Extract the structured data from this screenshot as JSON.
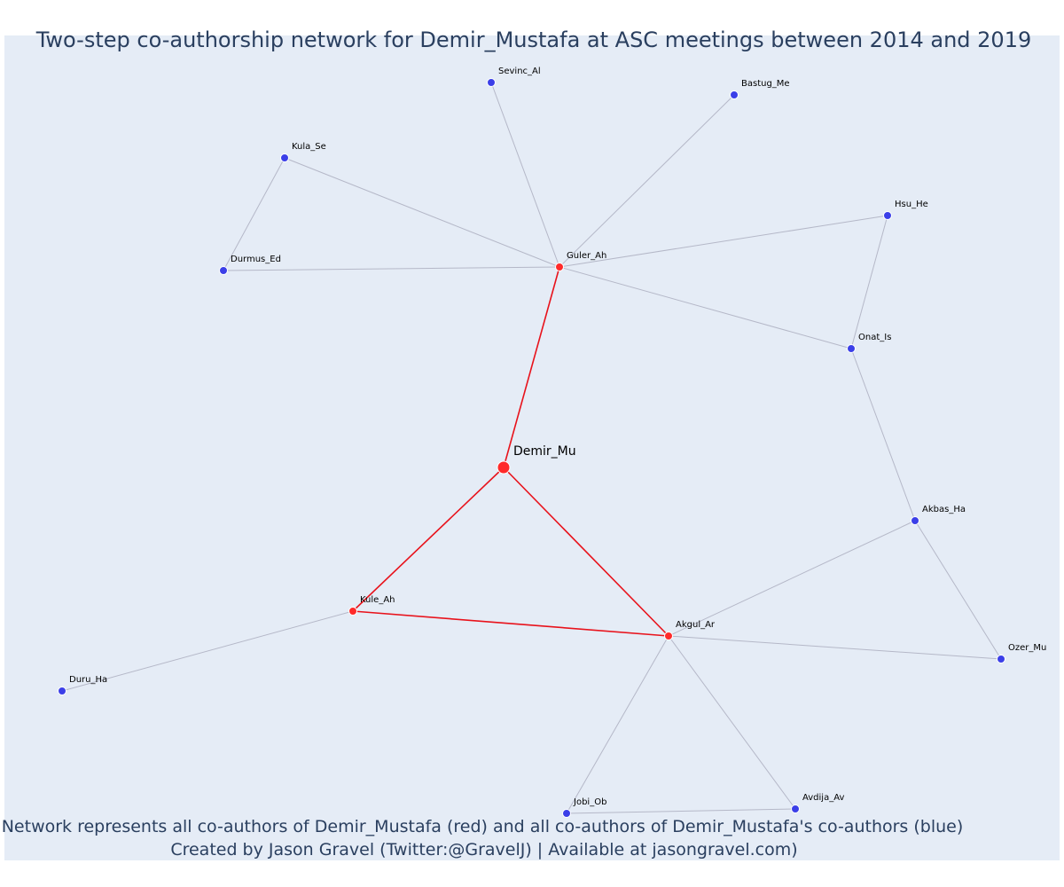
{
  "title": "Two-step co-authorship network for Demir_Mustafa at ASC meetings between 2014 and 2019",
  "caption_line1": "Network represents all co-authors of Demir_Mustafa (red) and all co-authors of Demir_Mustafa's co-authors (blue)",
  "caption_line2": "Created by Jason Gravel (Twitter:@GravelJ) | Available at jasongravel.com)",
  "colors": {
    "background": "#e5ecf6",
    "first_step": "#ff2a2a",
    "second_step": "#3b3fe8",
    "first_step_edge": "#e8121b",
    "second_step_edge": "#b5b8c8",
    "text": "#2a3f5f"
  },
  "nodes": [
    {
      "id": "Demir_Mu",
      "group": "center"
    },
    {
      "id": "Guler_Ah",
      "group": "first"
    },
    {
      "id": "Kule_Ah",
      "group": "first"
    },
    {
      "id": "Akgul_Ar",
      "group": "first"
    },
    {
      "id": "Sevinc_Al",
      "group": "second"
    },
    {
      "id": "Bastug_Me",
      "group": "second"
    },
    {
      "id": "Kula_Se",
      "group": "second"
    },
    {
      "id": "Durmus_Ed",
      "group": "second"
    },
    {
      "id": "Hsu_He",
      "group": "second"
    },
    {
      "id": "Onat_Is",
      "group": "second"
    },
    {
      "id": "Akbas_Ha",
      "group": "second"
    },
    {
      "id": "Ozer_Mu",
      "group": "second"
    },
    {
      "id": "Duru_Ha",
      "group": "second"
    },
    {
      "id": "Jobi_Ob",
      "group": "second"
    },
    {
      "id": "Avdija_Av",
      "group": "second"
    }
  ],
  "edges": [
    {
      "source": "Demir_Mu",
      "target": "Guler_Ah",
      "type": "first"
    },
    {
      "source": "Demir_Mu",
      "target": "Kule_Ah",
      "type": "first"
    },
    {
      "source": "Demir_Mu",
      "target": "Akgul_Ar",
      "type": "first"
    },
    {
      "source": "Kule_Ah",
      "target": "Akgul_Ar",
      "type": "first"
    },
    {
      "source": "Guler_Ah",
      "target": "Sevinc_Al",
      "type": "second"
    },
    {
      "source": "Guler_Ah",
      "target": "Bastug_Me",
      "type": "second"
    },
    {
      "source": "Guler_Ah",
      "target": "Kula_Se",
      "type": "second"
    },
    {
      "source": "Guler_Ah",
      "target": "Durmus_Ed",
      "type": "second"
    },
    {
      "source": "Guler_Ah",
      "target": "Hsu_He",
      "type": "second"
    },
    {
      "source": "Guler_Ah",
      "target": "Onat_Is",
      "type": "second"
    },
    {
      "source": "Kula_Se",
      "target": "Durmus_Ed",
      "type": "second"
    },
    {
      "source": "Hsu_He",
      "target": "Onat_Is",
      "type": "second"
    },
    {
      "source": "Onat_Is",
      "target": "Akbas_Ha",
      "type": "second"
    },
    {
      "source": "Akbas_Ha",
      "target": "Akgul_Ar",
      "type": "second"
    },
    {
      "source": "Akbas_Ha",
      "target": "Ozer_Mu",
      "type": "second"
    },
    {
      "source": "Akgul_Ar",
      "target": "Ozer_Mu",
      "type": "second"
    },
    {
      "source": "Akgul_Ar",
      "target": "Jobi_Ob",
      "type": "second"
    },
    {
      "source": "Akgul_Ar",
      "target": "Avdija_Av",
      "type": "second"
    },
    {
      "source": "Jobi_Ob",
      "target": "Avdija_Av",
      "type": "second"
    },
    {
      "source": "Kule_Ah",
      "target": "Duru_Ha",
      "type": "second"
    }
  ]
}
